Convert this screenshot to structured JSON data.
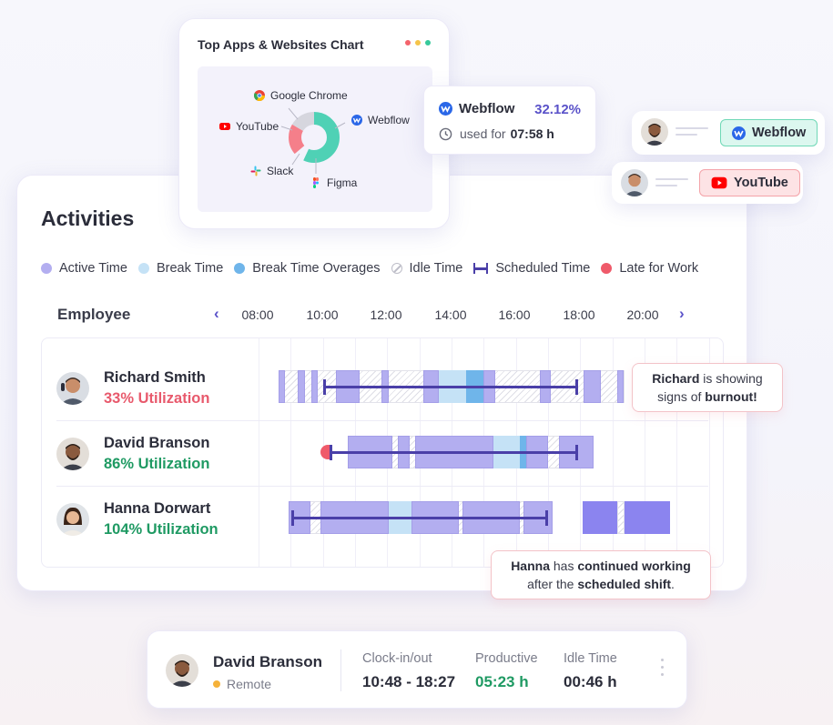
{
  "apps_chart": {
    "title": "Top Apps & Websites Chart",
    "window_dots": [
      "#f4636b",
      "#f5c44a",
      "#37c99b"
    ],
    "apps": [
      {
        "name": "Google Chrome",
        "icon": "chrome-icon"
      },
      {
        "name": "YouTube",
        "icon": "youtube-icon"
      },
      {
        "name": "Webflow",
        "icon": "webflow-icon"
      },
      {
        "name": "Slack",
        "icon": "slack-icon"
      },
      {
        "name": "Figma",
        "icon": "figma-icon"
      }
    ],
    "popover": {
      "app": "Webflow",
      "percent": "32.12%",
      "used_label": "used for",
      "used_time": "07:58 h"
    }
  },
  "chips": [
    {
      "label": "Webflow",
      "icon": "webflow-icon",
      "color": "#3ec9a0"
    },
    {
      "label": "YouTube",
      "icon": "youtube-icon",
      "color": "#f05454"
    }
  ],
  "activities": {
    "title": "Activities",
    "legend": [
      {
        "label": "Active Time",
        "color": "#b3aef0"
      },
      {
        "label": "Break Time",
        "color": "#c5e2f6"
      },
      {
        "label": "Break Time Overages",
        "color": "#6fb5ea"
      },
      {
        "label": "Idle Time",
        "color": "#bdbdc8"
      },
      {
        "label": "Scheduled Time",
        "color": "#4a3fa8"
      },
      {
        "label": "Late for Work",
        "color": "#ef5a6a"
      }
    ],
    "header": {
      "employee_label": "Employee",
      "prev": "‹",
      "next": "›",
      "ticks": [
        "08:00",
        "10:00",
        "12:00",
        "14:00",
        "16:00",
        "18:00",
        "20:00"
      ]
    },
    "employees": [
      {
        "name": "Richard Smith",
        "utilization": "33% Utilization",
        "util_color": "#e8596c"
      },
      {
        "name": "David Branson",
        "utilization": "86% Utilization",
        "util_color": "#1f9a63"
      },
      {
        "name": "Hanna Dorwart",
        "utilization": "104% Utilization",
        "util_color": "#1f9a63"
      }
    ],
    "tips": {
      "richard": {
        "name": "Richard",
        "text1": " is showing",
        "text2": "signs of ",
        "emph": "burnout!"
      },
      "hanna": {
        "name": "Hanna",
        "text1": " has ",
        "emph1": "continued working",
        "text2": "after the ",
        "emph2": "scheduled shift",
        "end": "."
      }
    }
  },
  "summary": {
    "name": "David Branson",
    "location": "Remote",
    "stats": [
      {
        "label": "Clock-in/out",
        "value": "10:48 - 18:27",
        "color": "#2b2d3a"
      },
      {
        "label": "Productive",
        "value": "05:23 h",
        "color": "#1f9a63"
      },
      {
        "label": "Idle Time",
        "value": "00:46 h",
        "color": "#2b2d3a"
      }
    ]
  }
}
